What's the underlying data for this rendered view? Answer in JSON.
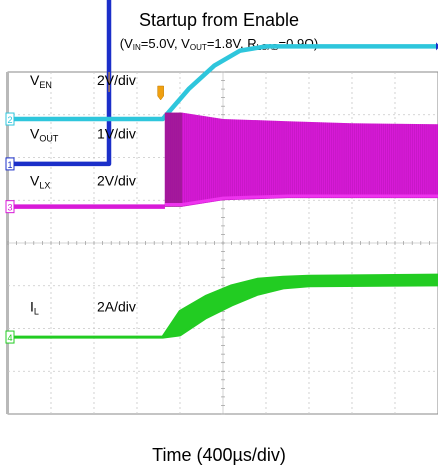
{
  "chart_data": {
    "type": "line",
    "title": "Startup from Enable",
    "subtitle": {
      "parts": [
        {
          "t": "(V"
        },
        {
          "s": "IN"
        },
        {
          "t": "=5.0V, V"
        },
        {
          "s": "OUT"
        },
        {
          "t": "=1.8V, R"
        },
        {
          "s": "LOAD"
        },
        {
          "t": "=0.9Ω)"
        }
      ]
    },
    "xlabel": "Time (400µs/div)",
    "x_divisions": 10,
    "y_divisions": 8,
    "grid": true,
    "x_unit": "div",
    "y_unit": "div",
    "series": [
      {
        "name": "V_EN",
        "label_main": "V",
        "label_sub": "EN",
        "scale": "2V/div",
        "marker": "1",
        "color": "#1b2fc9",
        "kind": "line",
        "marker_y": 1.85,
        "x": [
          0,
          2.35,
          2.35,
          10
        ],
        "y": [
          1.85,
          1.85,
          6.0,
          6.0
        ]
      },
      {
        "name": "V_OUT",
        "label_main": "V",
        "label_sub": "OUT",
        "scale": "1V/div",
        "marker": "2",
        "color": "#2ec6dc",
        "kind": "line",
        "marker_y": 2.9,
        "x": [
          0,
          3.6,
          4.2,
          4.8,
          5.4,
          6.0,
          6.6,
          10
        ],
        "y": [
          2.9,
          2.9,
          3.6,
          4.15,
          4.5,
          4.6,
          4.6,
          4.6
        ]
      },
      {
        "name": "V_LX",
        "label_main": "V",
        "label_sub": "LX",
        "scale": "2V/div",
        "marker": "3",
        "color": "#d81ad8",
        "kind": "switching",
        "marker_y": 0.85,
        "base": 0.85,
        "x_start": 3.65,
        "burst_end": 4.05,
        "envelope_x": [
          3.65,
          4.05,
          5.0,
          6.5,
          8.0,
          10
        ],
        "envelope_high": [
          3.05,
          3.05,
          2.9,
          2.85,
          2.8,
          2.78
        ],
        "envelope_low": [
          0.85,
          0.85,
          1.0,
          1.05,
          1.05,
          1.05
        ]
      },
      {
        "name": "I_L",
        "label_main": "I",
        "label_sub": "L",
        "scale": "2A/div",
        "marker": "4",
        "color": "#22cc22",
        "kind": "band",
        "marker_y": -2.2,
        "x": [
          0,
          3.6,
          4.0,
          4.6,
          5.2,
          5.8,
          6.4,
          7.0,
          10
        ],
        "y_upper": [
          -2.2,
          -2.2,
          -1.6,
          -1.25,
          -1.0,
          -0.85,
          -0.8,
          -0.78,
          -0.75
        ],
        "y_lower": [
          -2.2,
          -2.2,
          -2.15,
          -1.75,
          -1.45,
          -1.2,
          -1.05,
          -1.0,
          -0.98
        ]
      }
    ],
    "trigger_marker_x": 3.55
  }
}
